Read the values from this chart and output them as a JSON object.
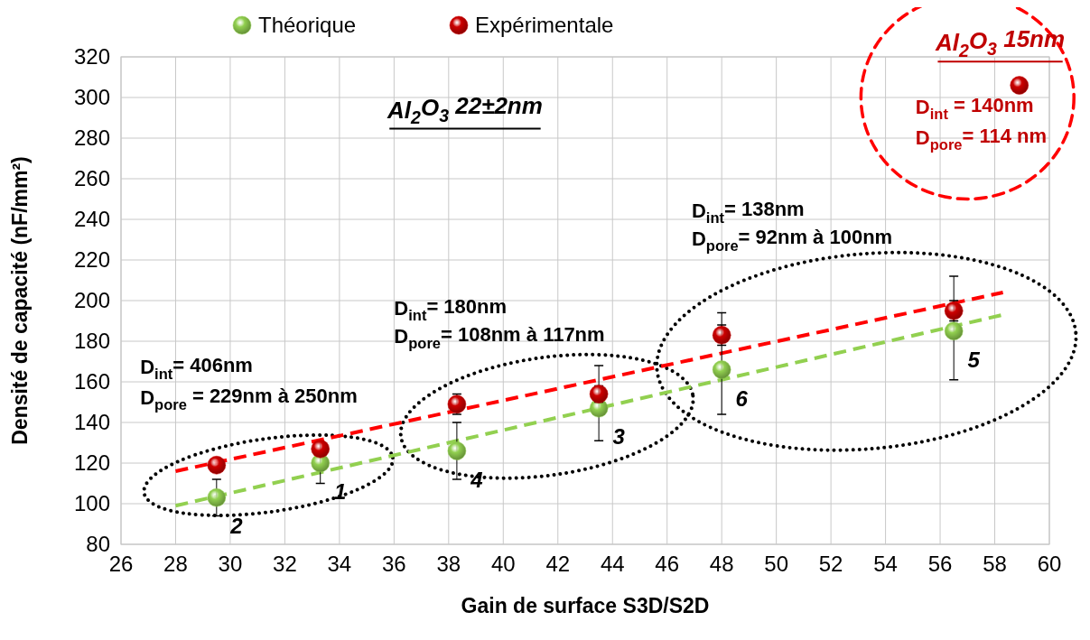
{
  "chart_data": {
    "type": "scatter",
    "xlabel": "Gain de surface S3D/S2D",
    "ylabel": "Densité de capacité (nF/mm²)",
    "xlim": [
      26,
      60
    ],
    "xticks": [
      26,
      28,
      30,
      32,
      34,
      36,
      38,
      40,
      42,
      44,
      46,
      48,
      50,
      52,
      54,
      56,
      58,
      60
    ],
    "ylim": [
      80,
      320
    ],
    "yticks": [
      80,
      100,
      120,
      140,
      160,
      180,
      200,
      220,
      240,
      260,
      280,
      300,
      320
    ],
    "grid": true,
    "legend": "top",
    "marker": "circle",
    "series": [
      {
        "name": "Théorique",
        "color": "#92d050",
        "x": [
          29.5,
          33.3,
          38.3,
          43.5,
          48,
          56.5
        ],
        "values": [
          103,
          120,
          126,
          147,
          166,
          185
        ],
        "errors": [
          [
            94,
            112
          ],
          [
            110,
            130
          ],
          [
            112,
            140
          ],
          [
            131,
            168
          ],
          [
            144,
            194
          ],
          [
            161,
            212
          ]
        ]
      },
      {
        "name": "Expérimentale",
        "color": "#cc0000",
        "x": [
          29.5,
          33.3,
          38.3,
          43.5,
          48,
          56.5,
          58.9
        ],
        "values": [
          119,
          127,
          149,
          154,
          183,
          195,
          306
        ],
        "errors": [
          null,
          null,
          5,
          4,
          5,
          5,
          null
        ]
      },
      {
        "type": "line",
        "color": "#ff0000",
        "line_style": "dashed",
        "marker": "none",
        "x": [
          28,
          58.3
        ],
        "values": [
          116,
          204
        ]
      },
      {
        "type": "line",
        "color": "#92d050",
        "line_style": "dashed",
        "marker": "none",
        "x": [
          28,
          58.3
        ],
        "values": [
          99,
          193
        ]
      }
    ],
    "annotations": [
      "Al$_{2}$O$_{3}$ 22±2nm",
      "Al$_{2}$O$_{3}$ 15nm",
      "D$_{int}$ = 140nm",
      "D$_{pore}$= 114 nm",
      "D$_{int}$= 406nm",
      "D$_{pore}$ = 229nm à 250nm",
      "D$_{int}$= 180nm",
      "D$_{pore}$= 108nm à 117nm",
      "D$_{int}$= 138nm",
      "D$_{pore}$= 92nm à 100nm",
      {
        "text": "2",
        "x": 29.5,
        "y": 103
      },
      {
        "text": "1",
        "x": 33.3,
        "y": 120
      },
      {
        "text": "4",
        "x": 38.3,
        "y": 126
      },
      {
        "text": "3",
        "x": 43.5,
        "y": 147
      },
      {
        "text": "6",
        "x": 48,
        "y": 166
      },
      {
        "text": "5",
        "x": 56.5,
        "y": 185
      }
    ]
  }
}
